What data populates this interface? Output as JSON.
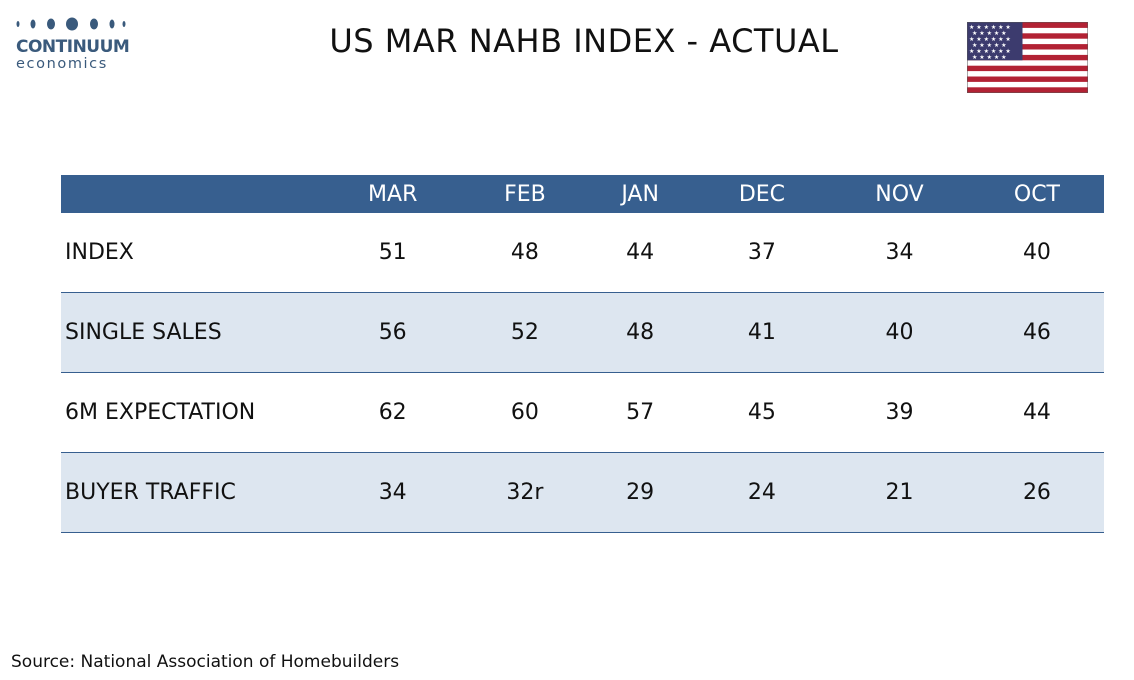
{
  "logo": {
    "main": "CONTINUUM",
    "sub": "economics"
  },
  "title": "US MAR NAHB INDEX - ACTUAL",
  "flag_icon": "us-flag-icon",
  "colors": {
    "header_bg": "#375f8f",
    "row_shade": "#dde6f0",
    "logo": "#3a5a7c"
  },
  "chart_data": {
    "type": "table",
    "columns": [
      "MAR",
      "FEB",
      "JAN",
      "DEC",
      "NOV",
      "OCT"
    ],
    "rows": [
      {
        "label": "INDEX",
        "values": [
          "51",
          "48",
          "44",
          "37",
          "34",
          "40"
        ]
      },
      {
        "label": "SINGLE SALES",
        "values": [
          "56",
          "52",
          "48",
          "41",
          "40",
          "46"
        ]
      },
      {
        "label": "6M EXPECTATION",
        "values": [
          "62",
          "60",
          "57",
          "45",
          "39",
          "44"
        ]
      },
      {
        "label": "BUYER TRAFFIC",
        "values": [
          "34",
          "32r",
          "29",
          "24",
          "21",
          "26"
        ]
      }
    ]
  },
  "source": "Source: National Association of Homebuilders"
}
